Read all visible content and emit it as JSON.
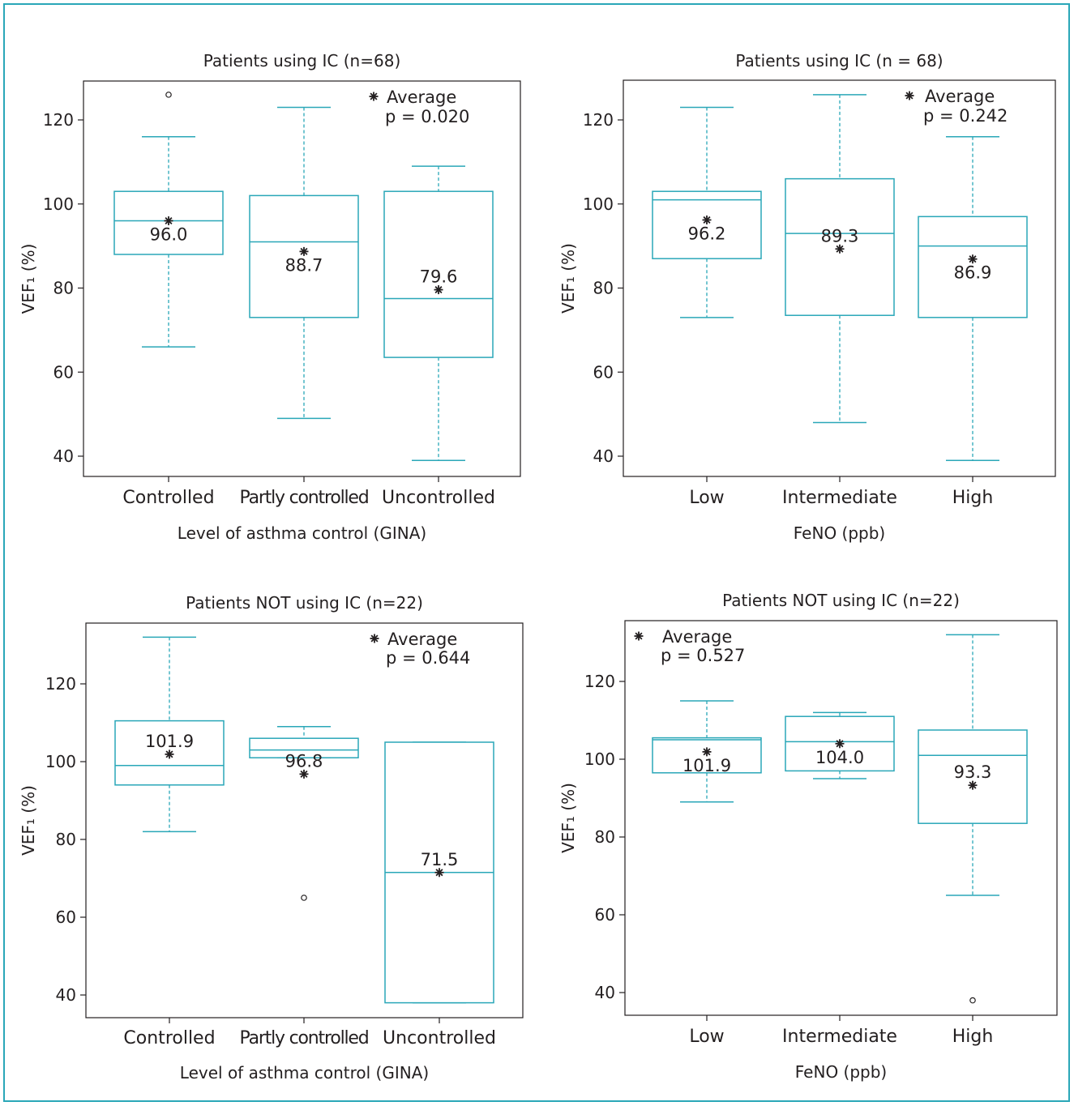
{
  "chart_data": [
    {
      "type": "box",
      "title": "Patients using IC (n=68)",
      "xlabel": "Level of asthma control (GINA)",
      "ylabel": "VEF₁ (%)",
      "ylim": [
        35,
        129
      ],
      "yticks": [
        40,
        60,
        80,
        100,
        120
      ],
      "legend": "top-right",
      "legend_label": "Average",
      "p_value": "p = 0.020",
      "categories": [
        "Controlled",
        "Partly controlled",
        "Uncontrolled"
      ],
      "boxes": [
        {
          "min": 66,
          "q1": 88,
          "median": 96,
          "q3": 103,
          "max": 116,
          "mean": 96.0,
          "mean_label": "96.0",
          "outliers": [
            126
          ]
        },
        {
          "min": 49,
          "q1": 73,
          "median": 91,
          "q3": 102,
          "max": 123,
          "mean": 88.7,
          "mean_label": "88.7",
          "outliers": []
        },
        {
          "min": 39,
          "q1": 63.5,
          "median": 77.5,
          "q3": 103,
          "max": 109,
          "mean": 79.6,
          "mean_label": "79.6",
          "outliers": []
        }
      ]
    },
    {
      "type": "box",
      "title": "Patients using IC (n = 68)",
      "xlabel": "FeNO (ppb)",
      "ylabel": "VEF₁ (%)",
      "ylim": [
        35,
        129
      ],
      "yticks": [
        40,
        60,
        80,
        100,
        120
      ],
      "legend": "top-right",
      "legend_label": "Average",
      "p_value": "p = 0.242",
      "categories": [
        "Low",
        "Intermediate",
        "High"
      ],
      "boxes": [
        {
          "min": 73,
          "q1": 87,
          "median": 101,
          "q3": 103,
          "max": 123,
          "mean": 96.2,
          "mean_label": "96.2",
          "outliers": []
        },
        {
          "min": 48,
          "q1": 73.5,
          "median": 93,
          "q3": 106,
          "max": 126,
          "mean": 89.3,
          "mean_label": "89.3",
          "outliers": []
        },
        {
          "min": 39,
          "q1": 73,
          "median": 90,
          "q3": 97,
          "max": 116,
          "mean": 86.9,
          "mean_label": "86.9",
          "outliers": []
        }
      ]
    },
    {
      "type": "box",
      "title": "Patients NOT using IC (n=22)",
      "xlabel": "Level of asthma control (GINA)",
      "ylabel": "VEF₁ (%)",
      "ylim": [
        34,
        136
      ],
      "yticks": [
        40,
        60,
        80,
        100,
        120
      ],
      "legend": "top-right",
      "legend_label": "Average",
      "p_value": "p = 0.644",
      "categories": [
        "Controlled",
        "Partly controlled",
        "Uncontrolled"
      ],
      "boxes": [
        {
          "min": 82,
          "q1": 94,
          "median": 99,
          "q3": 110.5,
          "max": 132,
          "mean": 101.9,
          "mean_label": "101.9",
          "outliers": []
        },
        {
          "min": 101,
          "q1": 101,
          "median": 103,
          "q3": 106,
          "max": 109,
          "mean": 96.8,
          "mean_label": "96.8",
          "outliers": [
            65
          ]
        },
        {
          "min": 38,
          "q1": 38,
          "median": 71.5,
          "q3": 105,
          "max": 105,
          "mean": 71.5,
          "mean_label": "71.5",
          "outliers": []
        }
      ]
    },
    {
      "type": "box",
      "title": "Patients NOT using IC (n=22)",
      "xlabel": "FeNO (ppb)",
      "ylabel": "VEF₁ (%)",
      "ylim": [
        34,
        136
      ],
      "yticks": [
        40,
        60,
        80,
        100,
        120
      ],
      "legend": "top-left",
      "legend_label": "Average",
      "p_value": "p = 0.527",
      "categories": [
        "Low",
        "Intermediate",
        "High"
      ],
      "boxes": [
        {
          "min": 89,
          "q1": 96.5,
          "median": 105,
          "q3": 105.5,
          "max": 115,
          "mean": 101.9,
          "mean_label": "101.9",
          "outliers": []
        },
        {
          "min": 95,
          "q1": 97,
          "median": 104.5,
          "q3": 111,
          "max": 112,
          "mean": 104.0,
          "mean_label": "104.0",
          "outliers": []
        },
        {
          "min": 65,
          "q1": 83.5,
          "median": 101,
          "q3": 107.5,
          "max": 132,
          "mean": 93.3,
          "mean_label": "93.3",
          "outliers": [
            38
          ]
        }
      ]
    }
  ]
}
